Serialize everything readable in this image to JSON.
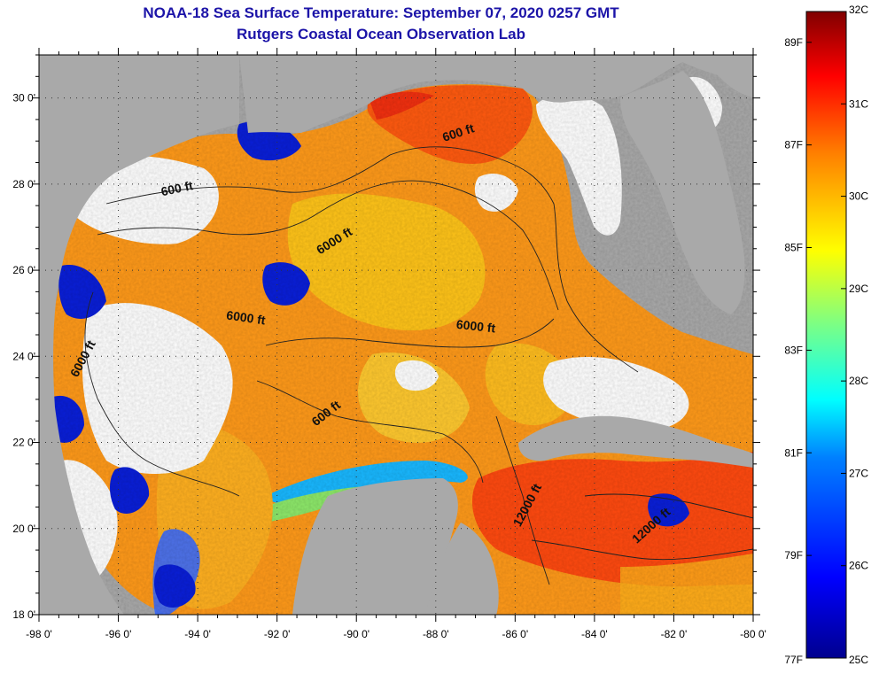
{
  "title": {
    "line1": "NOAA-18 Sea Surface Temperature:  September 07, 2020 0257 GMT",
    "line2": "Rutgers Coastal Ocean Observation Lab"
  },
  "map": {
    "lon_range": [
      -98,
      -80
    ],
    "lat_range": [
      18,
      31
    ],
    "lon_ticks": [
      {
        "value": -98,
        "label": "-98 0'"
      },
      {
        "value": -96,
        "label": "-96 0'"
      },
      {
        "value": -94,
        "label": "-94 0'"
      },
      {
        "value": -92,
        "label": "-92 0'"
      },
      {
        "value": -90,
        "label": "-90 0'"
      },
      {
        "value": -88,
        "label": "-88 0'"
      },
      {
        "value": -86,
        "label": "-86 0'"
      },
      {
        "value": -84,
        "label": "-84 0'"
      },
      {
        "value": -82,
        "label": "-82 0'"
      },
      {
        "value": -80,
        "label": "-80 0'"
      }
    ],
    "lat_ticks": [
      {
        "value": 18,
        "label": "18 0'"
      },
      {
        "value": 20,
        "label": "20 0'"
      },
      {
        "value": 22,
        "label": "22 0'"
      },
      {
        "value": 24,
        "label": "24 0'"
      },
      {
        "value": 26,
        "label": "26 0'"
      },
      {
        "value": 28,
        "label": "28 0'"
      },
      {
        "value": 30,
        "label": "30 0'"
      }
    ],
    "contour_labels": [
      {
        "text": "600 ft",
        "lon": -87.4,
        "lat": 29.1,
        "angle": -18
      },
      {
        "text": "600 ft",
        "lon": -94.5,
        "lat": 27.8,
        "angle": -12
      },
      {
        "text": "6000 ft",
        "lon": -90.5,
        "lat": 26.6,
        "angle": -32
      },
      {
        "text": "6000 ft",
        "lon": -92.8,
        "lat": 24.8,
        "angle": 8
      },
      {
        "text": "6000 ft",
        "lon": -87.0,
        "lat": 24.6,
        "angle": 6
      },
      {
        "text": "6000 ft",
        "lon": -96.8,
        "lat": 23.9,
        "angle": -62
      },
      {
        "text": "600 ft",
        "lon": -90.7,
        "lat": 22.6,
        "angle": -38
      },
      {
        "text": "12000 ft",
        "lon": -85.6,
        "lat": 20.5,
        "angle": -62
      },
      {
        "text": "12000 ft",
        "lon": -82.5,
        "lat": 20.0,
        "angle": -42
      }
    ],
    "colors": {
      "land": "#a9a9a9",
      "cloud": "#ffffff",
      "frame": "#000000"
    }
  },
  "colorbar": {
    "celsius_ticks": [
      {
        "value": 25,
        "label": "25C"
      },
      {
        "value": 26,
        "label": "26C"
      },
      {
        "value": 27,
        "label": "27C"
      },
      {
        "value": 28,
        "label": "28C"
      },
      {
        "value": 29,
        "label": "29C"
      },
      {
        "value": 30,
        "label": "30C"
      },
      {
        "value": 31,
        "label": "31C"
      },
      {
        "value": 32,
        "label": "32C"
      }
    ],
    "fahrenheit_ticks": [
      {
        "value": 77,
        "label": "77F"
      },
      {
        "value": 79,
        "label": "79F"
      },
      {
        "value": 81,
        "label": "81F"
      },
      {
        "value": 83,
        "label": "83F"
      },
      {
        "value": 85,
        "label": "85F"
      },
      {
        "value": 87,
        "label": "87F"
      },
      {
        "value": 89,
        "label": "89F"
      }
    ],
    "min_c": 25,
    "max_c": 32,
    "colormap": [
      "#00008f",
      "#0000ff",
      "#0080ff",
      "#00ffff",
      "#80ff80",
      "#ffff00",
      "#ff8000",
      "#ff0000",
      "#800000"
    ]
  }
}
